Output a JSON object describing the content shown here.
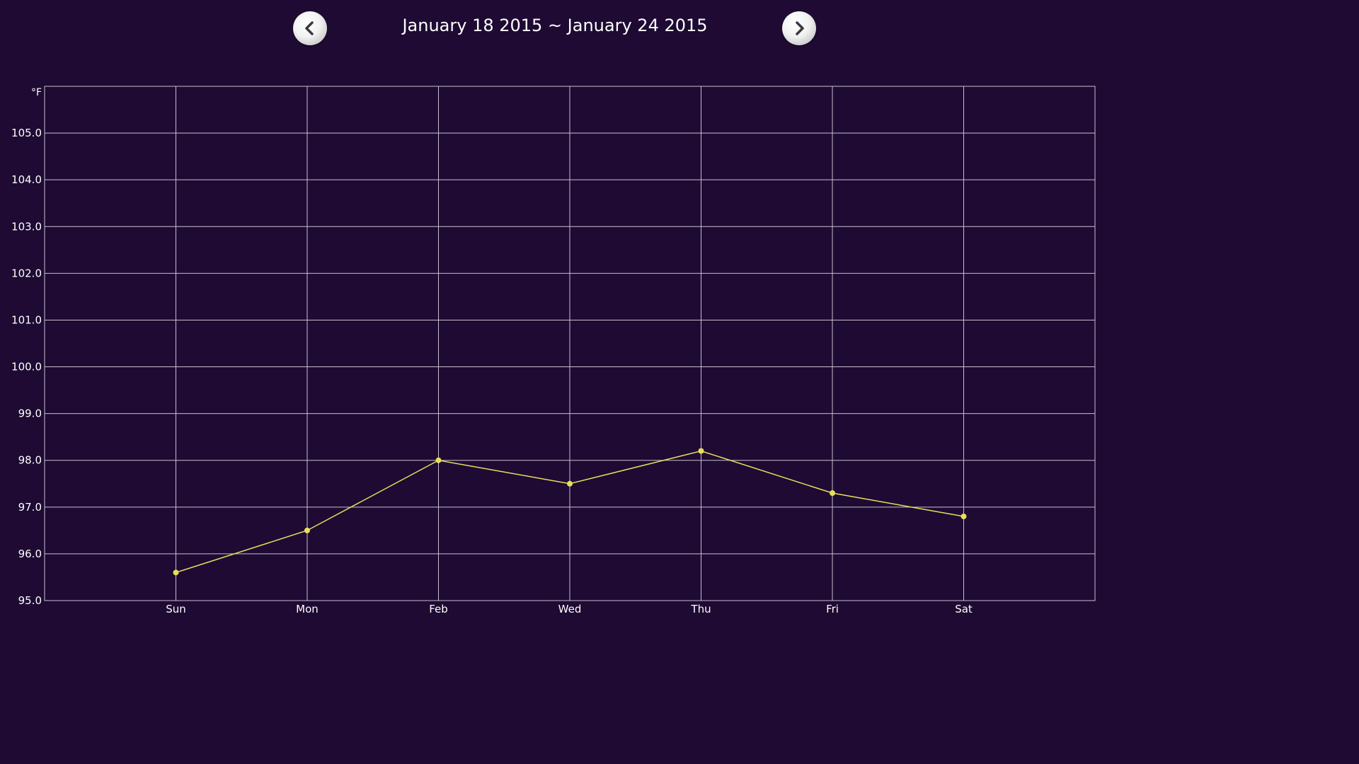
{
  "header": {
    "date_range": "January 18 2015 ~ January 24 2015",
    "prev_icon": "chevron-left-icon",
    "next_icon": "chevron-right-icon"
  },
  "colors": {
    "background": "#1e0a33",
    "grid": "#c8c0d0",
    "series": "#e8de5a"
  },
  "chart_data": {
    "type": "line",
    "unit": "°F",
    "categories": [
      "Sun",
      "Mon",
      "Feb",
      "Wed",
      "Thu",
      "Fri",
      "Sat"
    ],
    "series": [
      {
        "values": [
          95.6,
          96.5,
          98.0,
          97.5,
          98.2,
          97.3,
          96.8
        ]
      }
    ],
    "ylim": [
      95.0,
      106.0
    ],
    "yticks": [
      "95.0",
      "96.0",
      "97.0",
      "98.0",
      "99.0",
      "100.0",
      "101.0",
      "102.0",
      "103.0",
      "104.0",
      "105.0"
    ],
    "grid": true
  }
}
